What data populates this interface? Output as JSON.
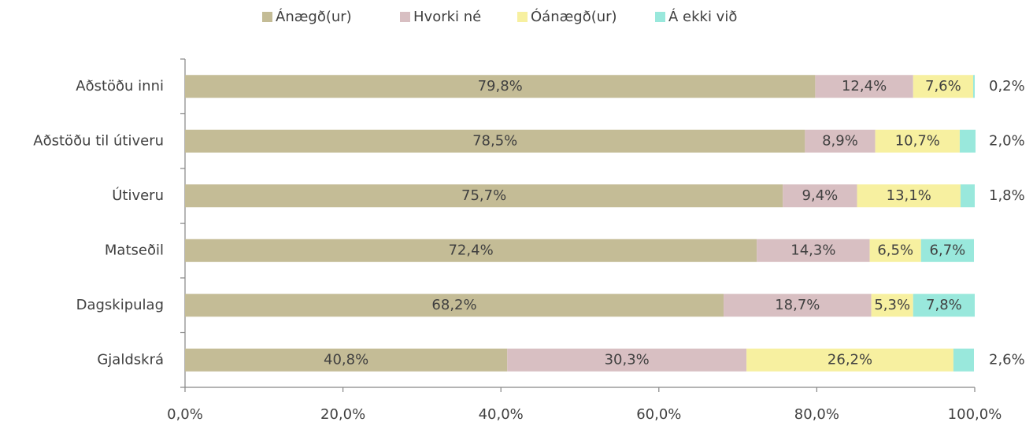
{
  "chart_data": {
    "type": "stacked_bar_horizontal",
    "categories": [
      "Aðstöðu inni",
      "Aðstöðu til útiveru",
      "Útiveru",
      "Matseðil",
      "Dagskipulag",
      "Gjaldskrá"
    ],
    "series": [
      {
        "name": "Ánægð(ur)",
        "color": "#c4bc96",
        "values": [
          79.8,
          78.5,
          75.7,
          72.4,
          68.2,
          40.8
        ],
        "value_labels": [
          "79,8%",
          "78,5%",
          "75,7%",
          "72,4%",
          "68,2%",
          "40,8%"
        ]
      },
      {
        "name": "Hvorki né",
        "color": "#d8bfc2",
        "values": [
          12.4,
          8.9,
          9.4,
          14.3,
          18.7,
          30.3
        ],
        "value_labels": [
          "12,4%",
          "8,9%",
          "9,4%",
          "14,3%",
          "18,7%",
          "30,3%"
        ]
      },
      {
        "name": "Óánægð(ur)",
        "color": "#f7f0a0",
        "values": [
          7.6,
          10.7,
          13.1,
          6.5,
          5.3,
          26.2
        ],
        "value_labels": [
          "7,6%",
          "10,7%",
          "13,1%",
          "6,5%",
          "5,3%",
          "26,2%"
        ]
      },
      {
        "name": "Á ekki við",
        "color": "#99e8dc",
        "values": [
          0.2,
          2.0,
          1.8,
          6.7,
          7.8,
          2.6
        ],
        "value_labels": [
          "0,2%",
          "2,0%",
          "1,8%",
          "6,7%",
          "7,8%",
          "2,6%"
        ]
      }
    ],
    "xlim": [
      0,
      100
    ],
    "xticks": [
      {
        "value": 0,
        "label": "0,0%"
      },
      {
        "value": 20,
        "label": "20,0%"
      },
      {
        "value": 40,
        "label": "40,0%"
      },
      {
        "value": 60,
        "label": "60,0%"
      },
      {
        "value": 80,
        "label": "80,0%"
      },
      {
        "value": 100,
        "label": "100,0%"
      }
    ],
    "legend": "top"
  }
}
